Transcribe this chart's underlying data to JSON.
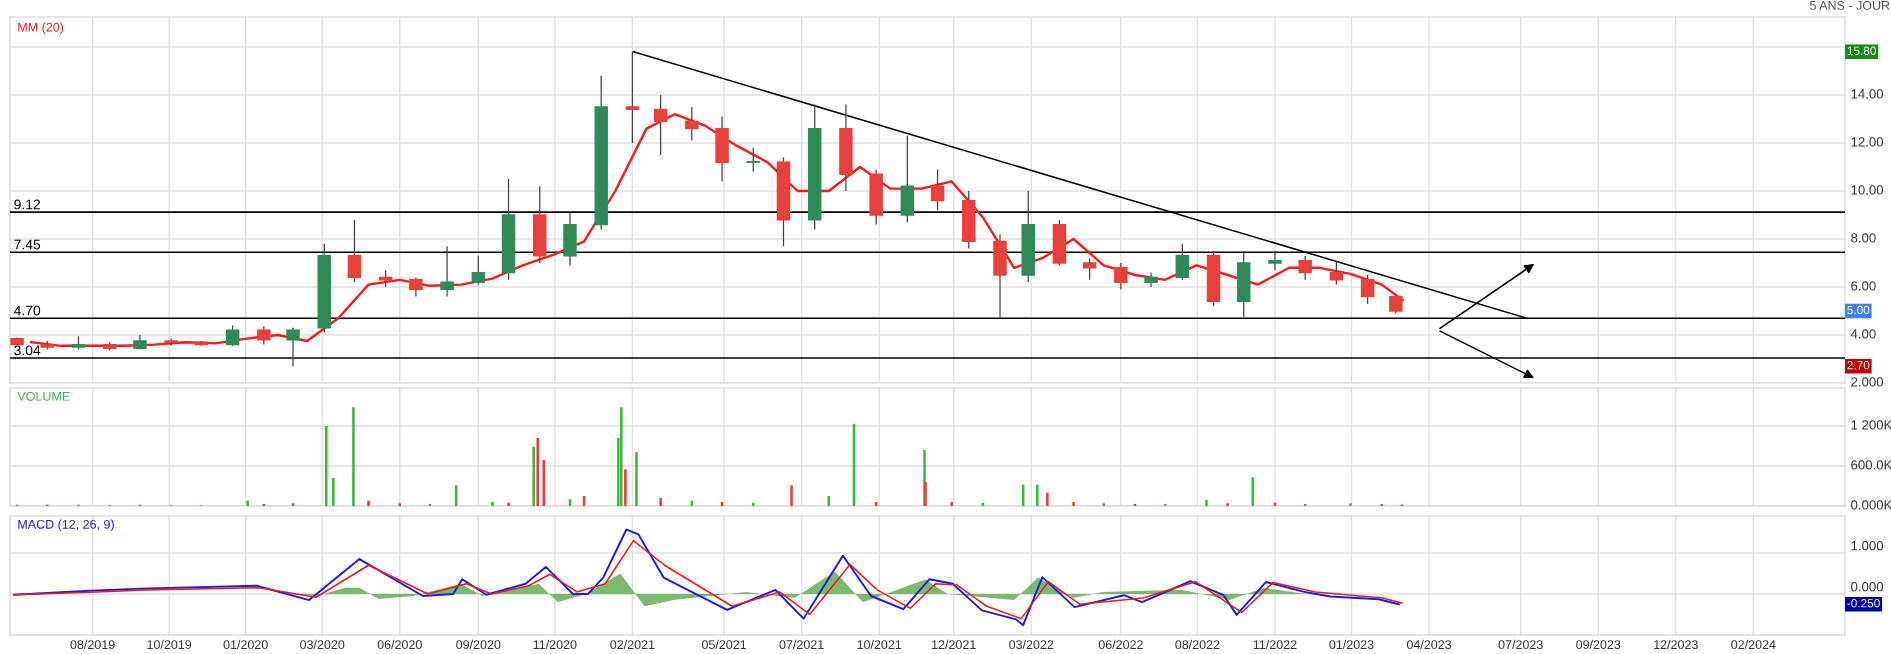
{
  "chart_data": [
    {
      "type": "candlestick",
      "subtitle": "5 ANS - JOUR",
      "x": [
        "2019-06-01",
        "2019-07-01",
        "2019-08-01",
        "2019-09-01",
        "2019-10-01",
        "2019-11-01",
        "2019-12-01",
        "2020-01-01",
        "2020-02-01",
        "2020-03-01",
        "2020-04-01",
        "2020-05-01",
        "2020-06-01",
        "2020-07-01",
        "2020-08-01",
        "2020-09-01",
        "2020-10-01",
        "2020-11-01",
        "2020-12-01",
        "2021-01-01",
        "2021-02-01",
        "2021-03-01",
        "2021-04-01",
        "2021-05-01",
        "2021-06-01",
        "2021-07-01",
        "2021-08-01",
        "2021-09-01",
        "2021-10-01",
        "2021-11-01",
        "2021-12-01",
        "2022-01-01",
        "2022-02-01",
        "2022-03-01",
        "2022-04-01",
        "2022-05-01",
        "2022-06-01",
        "2022-07-01",
        "2022-08-01",
        "2022-09-01",
        "2022-10-01",
        "2022-11-01",
        "2022-12-01",
        "2023-01-01",
        "2023-02-01",
        "2023-03-01"
      ],
      "ohlc": [
        [
          3.85,
          3.9,
          3.55,
          3.6
        ],
        [
          3.6,
          3.75,
          3.4,
          3.5
        ],
        [
          3.5,
          3.95,
          3.4,
          3.6
        ],
        [
          3.6,
          3.7,
          3.35,
          3.45
        ],
        [
          3.45,
          4.0,
          3.4,
          3.75
        ],
        [
          3.75,
          3.85,
          3.55,
          3.7
        ],
        [
          3.7,
          3.75,
          3.55,
          3.6
        ],
        [
          3.6,
          4.4,
          3.55,
          4.2
        ],
        [
          4.2,
          4.35,
          3.6,
          3.8
        ],
        [
          3.8,
          4.3,
          2.7,
          4.2
        ],
        [
          4.3,
          7.8,
          4.1,
          7.3
        ],
        [
          7.3,
          8.8,
          6.2,
          6.4
        ],
        [
          6.4,
          6.7,
          6.0,
          6.3
        ],
        [
          6.3,
          6.4,
          5.6,
          5.9
        ],
        [
          5.9,
          7.7,
          5.6,
          6.2
        ],
        [
          6.2,
          7.3,
          6.1,
          6.6
        ],
        [
          6.6,
          10.5,
          6.3,
          9.0
        ],
        [
          9.0,
          10.2,
          7.0,
          7.3
        ],
        [
          7.3,
          9.1,
          6.9,
          8.6
        ],
        [
          8.6,
          14.8,
          8.4,
          13.5
        ],
        [
          13.5,
          15.8,
          12.0,
          13.4
        ],
        [
          13.4,
          14.0,
          11.5,
          12.9
        ],
        [
          12.9,
          13.5,
          12.1,
          12.6
        ],
        [
          12.6,
          13.1,
          10.4,
          11.2
        ],
        [
          11.2,
          11.8,
          10.8,
          11.2
        ],
        [
          11.2,
          11.4,
          7.7,
          8.8
        ],
        [
          8.8,
          13.6,
          8.4,
          12.6
        ],
        [
          12.6,
          13.6,
          10.0,
          10.7
        ],
        [
          10.7,
          10.9,
          8.6,
          9.0
        ],
        [
          9.0,
          12.3,
          8.7,
          10.2
        ],
        [
          10.2,
          10.9,
          9.2,
          9.6
        ],
        [
          9.6,
          10.0,
          7.6,
          7.9
        ],
        [
          7.9,
          8.2,
          4.7,
          6.5
        ],
        [
          6.5,
          10.0,
          6.2,
          8.6
        ],
        [
          8.6,
          8.8,
          6.9,
          7.0
        ],
        [
          7.0,
          7.2,
          6.3,
          6.8
        ],
        [
          6.8,
          7.0,
          5.9,
          6.2
        ],
        [
          6.2,
          6.6,
          6.0,
          6.4
        ],
        [
          6.4,
          7.8,
          6.3,
          7.3
        ],
        [
          7.3,
          7.5,
          5.2,
          5.4
        ],
        [
          5.4,
          7.5,
          4.75,
          7.0
        ],
        [
          7.0,
          7.5,
          6.7,
          7.1
        ],
        [
          7.1,
          7.3,
          6.3,
          6.6
        ],
        [
          6.6,
          7.1,
          6.1,
          6.3
        ],
        [
          6.3,
          6.5,
          5.3,
          5.6
        ],
        [
          5.6,
          5.7,
          4.9,
          5.0
        ]
      ],
      "series": [
        {
          "type": "line",
          "name": "MM (20)",
          "color": "#ff1a1a",
          "x": [
            "2019-06-15",
            "2019-07-15",
            "2019-08-15",
            "2019-09-15",
            "2019-10-15",
            "2019-11-15",
            "2019-12-15",
            "2020-01-15",
            "2020-02-15",
            "2020-03-15",
            "2020-04-15",
            "2020-05-15",
            "2020-06-15",
            "2020-07-15",
            "2020-08-15",
            "2020-09-15",
            "2020-10-15",
            "2020-11-15",
            "2020-12-15",
            "2021-01-15",
            "2021-02-15",
            "2021-03-15",
            "2021-04-15",
            "2021-05-15",
            "2021-06-15",
            "2021-07-15",
            "2021-08-15",
            "2021-09-15",
            "2021-10-15",
            "2021-11-15",
            "2021-12-15",
            "2022-01-15",
            "2022-02-15",
            "2022-03-15",
            "2022-04-15",
            "2022-05-15",
            "2022-06-15",
            "2022-07-15",
            "2022-08-15",
            "2022-09-15",
            "2022-10-15",
            "2022-11-15",
            "2022-12-15",
            "2023-01-15",
            "2023-02-15",
            "2023-03-08"
          ],
          "values": [
            3.7,
            3.55,
            3.55,
            3.55,
            3.6,
            3.7,
            3.65,
            3.85,
            4.0,
            3.75,
            4.7,
            6.1,
            6.3,
            6.05,
            6.1,
            6.35,
            6.9,
            7.35,
            7.9,
            10.0,
            12.6,
            13.2,
            12.7,
            11.9,
            11.2,
            10.0,
            10.0,
            11.0,
            10.1,
            10.1,
            10.4,
            8.9,
            6.8,
            7.2,
            8.0,
            6.9,
            6.5,
            6.3,
            6.9,
            6.5,
            6.1,
            6.8,
            6.8,
            6.55,
            6.1,
            5.45
          ]
        },
        {
          "type": "line",
          "color": "#000000",
          "x": [
            "2021-02-02",
            "2023-07-09"
          ],
          "values": [
            15.8,
            4.7
          ]
        }
      ],
      "ref_lines": [
        {
          "axis": "y",
          "value": 9.12,
          "label": "9.12",
          "color": "#000000"
        },
        {
          "axis": "y",
          "value": 7.45,
          "label": "7.45",
          "color": "#000000"
        },
        {
          "axis": "y",
          "value": 4.7,
          "label": "4.70",
          "color": "#000000"
        },
        {
          "axis": "y",
          "value": 3.04,
          "label": "3.04",
          "color": "#000000"
        }
      ],
      "annotations": [
        "15.80",
        "5.00",
        "2.70"
      ],
      "xlim": [
        "2019-05-25",
        "2024-05-20"
      ],
      "ylim": [
        2,
        17.25
      ],
      "yticks": [
        {
          "value": 2,
          "label": "2.000"
        },
        {
          "value": 4,
          "label": "4.00"
        },
        {
          "value": 6,
          "label": "6.00"
        },
        {
          "value": 8,
          "label": "8.00"
        },
        {
          "value": 10,
          "label": "10.00"
        },
        {
          "value": 12,
          "label": "12.00"
        },
        {
          "value": 14,
          "label": "14.00"
        },
        {
          "value": 16,
          "label": null
        }
      ],
      "xticks": [
        "2019-08-15",
        "2019-10-30",
        "2020-01-14",
        "2020-03-30",
        "2020-06-15",
        "2020-09-01",
        "2020-11-16",
        "2021-02-01",
        "2021-05-03",
        "2021-07-19",
        "2021-10-04",
        "2021-12-17",
        "2022-03-04",
        "2022-06-01",
        "2022-08-16",
        "2022-11-01",
        "2023-01-16",
        "2023-04-03",
        "2023-07-03",
        "2023-09-18",
        "2023-12-04",
        "2024-02-19"
      ],
      "tick_labels": "y",
      "grid": true
    },
    {
      "type": "bar",
      "title": "VOLUME",
      "x": [
        "2019-06-01",
        "2019-07-01",
        "2019-08-01",
        "2019-09-01",
        "2019-10-01",
        "2019-11-01",
        "2019-12-01",
        "2020-01-16",
        "2020-02-01",
        "2020-03-01",
        "2020-04-03",
        "2020-04-10",
        "2020-04-30",
        "2020-05-15",
        "2020-06-15",
        "2020-07-15",
        "2020-08-10",
        "2020-09-15",
        "2020-10-01",
        "2020-10-26",
        "2020-10-30",
        "2020-11-05",
        "2020-12-01",
        "2020-12-15",
        "2021-01-18",
        "2021-01-21",
        "2021-01-25",
        "2021-02-05",
        "2021-03-01",
        "2021-04-01",
        "2021-05-01",
        "2021-06-01",
        "2021-07-09",
        "2021-08-15",
        "2021-09-09",
        "2021-10-01",
        "2021-11-18",
        "2021-11-19",
        "2021-12-15",
        "2022-01-15",
        "2022-02-24",
        "2022-03-10",
        "2022-03-20",
        "2022-04-15",
        "2022-05-15",
        "2022-06-15",
        "2022-07-15",
        "2022-08-25",
        "2022-09-15",
        "2022-10-10",
        "2022-11-01",
        "2022-12-01",
        "2023-01-15",
        "2023-02-15",
        "2023-03-07"
      ],
      "values": [
        20000,
        20000,
        20000,
        10000,
        20000,
        10000,
        10000,
        80000,
        30000,
        40000,
        1200000,
        420000,
        1480000,
        80000,
        40000,
        30000,
        310000,
        60000,
        50000,
        890000,
        1020000,
        690000,
        100000,
        150000,
        1020000,
        1480000,
        550000,
        810000,
        120000,
        80000,
        60000,
        50000,
        310000,
        150000,
        1230000,
        60000,
        840000,
        360000,
        60000,
        50000,
        320000,
        320000,
        200000,
        60000,
        40000,
        30000,
        30000,
        90000,
        40000,
        430000,
        50000,
        30000,
        40000,
        30000,
        20000
      ],
      "colors": [
        "#33bb33",
        "#ff3333",
        "#33bb33",
        "#ff3333",
        "#33bb33",
        "#33bb33",
        "#ff3333",
        "#33bb33",
        "#ff3333",
        "#ff3333",
        "#33bb33",
        "#33bb33",
        "#33bb33",
        "#ff3333",
        "#ff3333",
        "#33bb33",
        "#33bb33",
        "#33bb33",
        "#ff3333",
        "#33bb33",
        "#ff3333",
        "#ff3333",
        "#33bb33",
        "#ff3333",
        "#33bb33",
        "#33bb33",
        "#ff3333",
        "#33bb33",
        "#ff3333",
        "#33bb33",
        "#ff3333",
        "#33bb33",
        "#ff3333",
        "#33bb33",
        "#33bb33",
        "#ff3333",
        "#33bb33",
        "#ff3333",
        "#ff3333",
        "#33bb33",
        "#33bb33",
        "#33bb33",
        "#ff3333",
        "#ff3333",
        "#33bb33",
        "#ff3333",
        "#33bb33",
        "#33bb33",
        "#ff3333",
        "#33bb33",
        "#ff3333",
        "#33bb33",
        "#33bb33",
        "#ff3333",
        "#ff3333"
      ],
      "xlim": [
        "2019-05-25",
        "2024-05-20"
      ],
      "ylim": [
        0,
        1770000
      ],
      "yticks": [
        {
          "value": 0,
          "label": "0.000K"
        },
        {
          "value": 600000,
          "label": "600.0K"
        },
        {
          "value": 1200000,
          "label": "1 200K"
        }
      ],
      "xticks": [
        "2019-08-15",
        "2019-10-30",
        "2020-01-14",
        "2020-03-30",
        "2020-06-15",
        "2020-09-01",
        "2020-11-16",
        "2021-02-01",
        "2021-05-03",
        "2021-07-19",
        "2021-10-04",
        "2021-12-17",
        "2022-03-04",
        "2022-06-01",
        "2022-08-16",
        "2022-11-01",
        "2023-01-16",
        "2023-04-03",
        "2023-07-03",
        "2023-09-18",
        "2023-12-04",
        "2024-02-19"
      ],
      "tick_labels": "y",
      "grid": true
    },
    {
      "type": "line",
      "title": "MACD (12, 26, 9)",
      "series": [
        {
          "type": "area",
          "color": "#5aaa4a",
          "x": [
            "2019-05-29",
            "2020-02-25",
            "2020-03-24",
            "2020-04-22",
            "2020-05-06",
            "2020-05-25",
            "2020-06-28",
            "2020-08-15",
            "2020-09-05",
            "2020-10-31",
            "2020-11-19",
            "2020-12-17",
            "2021-01-20",
            "2021-02-13",
            "2021-03-14",
            "2021-05-25",
            "2021-07-12",
            "2021-08-21",
            "2021-09-18",
            "2021-11-19",
            "2021-12-11",
            "2022-02-15",
            "2022-03-11",
            "2022-04-15",
            "2022-05-14",
            "2022-07-31",
            "2022-09-17",
            "2022-10-21",
            "2022-12-02",
            "2023-03-07"
          ],
          "values": [
            0,
            0,
            -0.05,
            0.15,
            0.15,
            -0.12,
            -0.05,
            0.25,
            -0.05,
            0.25,
            -0.2,
            0,
            0.5,
            -0.3,
            -0.15,
            0.05,
            -0.1,
            0.55,
            -0.2,
            0.35,
            0,
            -0.15,
            0.4,
            -0.1,
            0.05,
            0.1,
            -0.15,
            0.15,
            0,
            0
          ]
        },
        {
          "type": "line",
          "color": "#1a1aee",
          "x": [
            "2019-05-29",
            "2019-08-08",
            "2019-10-02",
            "2020-01-25",
            "2020-03-17",
            "2020-05-06",
            "2020-07-08",
            "2020-08-07",
            "2020-08-16",
            "2020-09-09",
            "2020-10-18",
            "2020-11-07",
            "2020-12-04",
            "2020-12-19",
            "2021-01-03",
            "2021-01-26",
            "2021-02-07",
            "2021-03-04",
            "2021-05-06",
            "2021-06-23",
            "2021-07-21",
            "2021-08-29",
            "2021-09-26",
            "2021-10-28",
            "2021-11-23",
            "2021-12-16",
            "2022-01-14",
            "2022-02-17",
            "2022-02-24",
            "2022-03-15",
            "2022-04-16",
            "2022-06-04",
            "2022-06-22",
            "2022-08-09",
            "2022-09-11",
            "2022-09-24",
            "2022-10-23",
            "2022-12-02",
            "2022-12-26",
            "2023-02-12",
            "2023-03-04"
          ],
          "values": [
            -0.02,
            0.07,
            0.13,
            0.2,
            -0.15,
            0.85,
            -0.05,
            0,
            0.36,
            -0.02,
            0.25,
            0.66,
            0,
            0,
            0.4,
            1.57,
            1.45,
            0.4,
            -0.39,
            0.1,
            -0.6,
            0.93,
            -0.05,
            -0.37,
            0.36,
            0.25,
            -0.4,
            -0.62,
            -0.76,
            0.41,
            -0.32,
            -0.03,
            -0.2,
            0.31,
            -0.03,
            -0.51,
            0.29,
            0.04,
            -0.06,
            -0.13,
            -0.25
          ]
        },
        {
          "type": "line",
          "color": "#ee1a1a",
          "x": [
            "2019-05-29",
            "2019-08-19",
            "2019-10-05",
            "2020-01-27",
            "2020-03-24",
            "2020-05-15",
            "2020-07-13",
            "2020-08-20",
            "2020-09-14",
            "2020-10-21",
            "2020-11-11",
            "2020-12-08",
            "2021-01-05",
            "2021-02-02",
            "2021-03-05",
            "2021-05-11",
            "2021-06-27",
            "2021-07-27",
            "2021-09-05",
            "2021-10-02",
            "2021-11-04",
            "2021-11-29",
            "2021-12-20",
            "2022-01-19",
            "2022-02-22",
            "2022-03-21",
            "2022-04-21",
            "2022-06-23",
            "2022-08-14",
            "2022-09-29",
            "2022-10-30",
            "2022-12-11",
            "2023-02-16",
            "2023-03-07"
          ],
          "values": [
            -0.02,
            0.05,
            0.1,
            0.15,
            -0.08,
            0.7,
            0,
            0.25,
            0,
            0.2,
            0.48,
            0.05,
            0.25,
            1.3,
            0.7,
            -0.3,
            0.05,
            -0.5,
            0.72,
            0.1,
            -0.35,
            0.25,
            0.22,
            -0.3,
            -0.6,
            0.3,
            -0.25,
            -0.1,
            0.3,
            -0.45,
            0.28,
            0.05,
            -0.1,
            -0.22
          ]
        }
      ],
      "annotations": [
        "-0.250"
      ],
      "xlim": [
        "2019-05-25",
        "2024-05-20"
      ],
      "ylim": [
        -1.0,
        1.9
      ],
      "yticks": [
        {
          "value": 1,
          "label": "1.000"
        },
        {
          "value": 0,
          "label": "0.000"
        }
      ],
      "xticks": [
        {
          "value": "2019-08-15",
          "label": "08/2019"
        },
        {
          "value": "2019-10-30",
          "label": "10/2019"
        },
        {
          "value": "2020-01-14",
          "label": "01/2020"
        },
        {
          "value": "2020-03-30",
          "label": "03/2020"
        },
        {
          "value": "2020-06-15",
          "label": "06/2020"
        },
        {
          "value": "2020-09-01",
          "label": "09/2020"
        },
        {
          "value": "2020-11-16",
          "label": "11/2020"
        },
        {
          "value": "2021-02-01",
          "label": "02/2021"
        },
        {
          "value": "2021-05-03",
          "label": "05/2021"
        },
        {
          "value": "2021-07-19",
          "label": "07/2021"
        },
        {
          "value": "2021-10-04",
          "label": "10/2021"
        },
        {
          "value": "2021-12-17",
          "label": "12/2021"
        },
        {
          "value": "2022-03-04",
          "label": "03/2022"
        },
        {
          "value": "2022-06-01",
          "label": "06/2022"
        },
        {
          "value": "2022-08-16",
          "label": "08/2022"
        },
        {
          "value": "2022-11-01",
          "label": "11/2022"
        },
        {
          "value": "2023-01-16",
          "label": "01/2023"
        },
        {
          "value": "2023-04-03",
          "label": "04/2023"
        },
        {
          "value": "2023-07-03",
          "label": "07/2023"
        },
        {
          "value": "2023-09-18",
          "label": "09/2023"
        },
        {
          "value": "2023-12-04",
          "label": "12/2023"
        },
        {
          "value": "2024-02-19",
          "label": "02/2024"
        }
      ],
      "grid": true
    }
  ]
}
